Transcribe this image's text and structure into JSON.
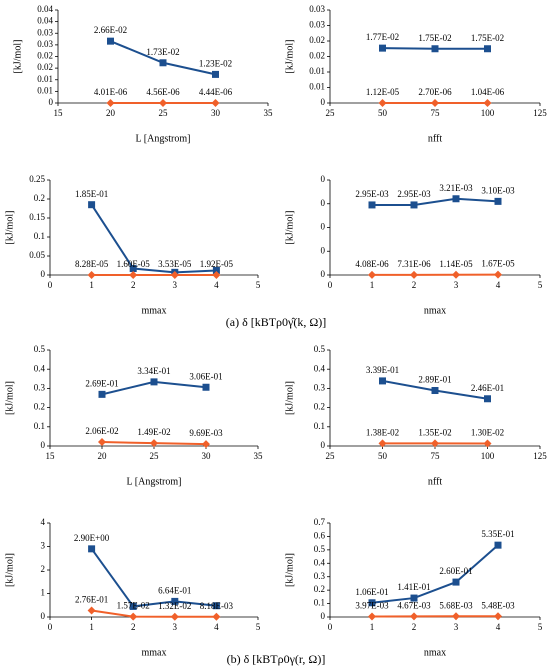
{
  "chart_data": [
    {
      "type": "line",
      "xlabel": "L [Angstrom]",
      "ylabel": "[kJ/mol]",
      "x": [
        20,
        25,
        30
      ],
      "xlim": [
        15,
        35
      ],
      "xticks": [
        15,
        20,
        25,
        30,
        35
      ],
      "ylim": [
        0,
        0.04
      ],
      "yticks": [
        0,
        {
          "value": 0.005,
          "label": "0.01"
        },
        0.01,
        {
          "value": 0.015,
          "label": "0.02"
        },
        0.02,
        {
          "value": 0.025,
          "label": "0.03"
        },
        0.03,
        {
          "value": 0.035,
          "label": "0.04"
        },
        0.04
      ],
      "series": [
        {
          "color": "#1c4f8f",
          "marker": "square",
          "values": [
            0.0266,
            0.0173,
            0.0123
          ],
          "value_labels": [
            "2.66E-02",
            "1.73E-02",
            "1.23E-02"
          ]
        },
        {
          "color": "#f0602a",
          "marker": "diamond",
          "values": [
            4.01e-06,
            4.56e-06,
            4.44e-06
          ],
          "value_labels": [
            "4.01E-06",
            "4.56E-06",
            "4.44E-06"
          ]
        }
      ]
    },
    {
      "type": "line",
      "xlabel": "nfft",
      "ylabel": "[kJ/mol]",
      "x": [
        50,
        75,
        100
      ],
      "xlim": [
        25,
        125
      ],
      "xticks": [
        25,
        50,
        75,
        100,
        125
      ],
      "ylim": [
        0,
        0.03
      ],
      "yticks": [
        0,
        {
          "value": 0.005,
          "label": "0.01"
        },
        0.01,
        {
          "value": 0.015,
          "label": "0.02"
        },
        0.02,
        {
          "value": 0.025,
          "label": "0.03"
        },
        0.03
      ],
      "series": [
        {
          "color": "#1c4f8f",
          "marker": "square",
          "values": [
            0.0177,
            0.0175,
            0.0175
          ],
          "value_labels": [
            "1.77E-02",
            "1.75E-02",
            "1.75E-02"
          ]
        },
        {
          "color": "#f0602a",
          "marker": "diamond",
          "values": [
            1.12e-05,
            2.7e-06,
            1.04e-06
          ],
          "value_labels": [
            "1.12E-05",
            "2.70E-06",
            "1.04E-06"
          ]
        }
      ]
    },
    {
      "type": "line",
      "xlabel": "mmax",
      "ylabel": "[kJ/mol]",
      "x": [
        1,
        2,
        3,
        4
      ],
      "xlim": [
        0,
        5
      ],
      "xticks": [
        0,
        1,
        2,
        3,
        4,
        5
      ],
      "ylim": [
        0,
        0.25
      ],
      "yticks": [
        0,
        0.05,
        0.1,
        0.15,
        0.2,
        0.25
      ],
      "series": [
        {
          "color": "#1c4f8f",
          "marker": "square",
          "values": [
            0.185,
            0.017,
            0.007,
            0.012
          ],
          "value_labels": [
            "1.85E-01",
            null,
            null,
            null
          ]
        },
        {
          "color": "#f0602a",
          "marker": "diamond",
          "values": [
            8.28e-05,
            1.6e-05,
            3.53e-05,
            1.92e-05
          ],
          "value_labels": [
            "8.28E-05",
            "1.60E-05",
            "3.53E-05",
            "1.92E-05"
          ]
        }
      ]
    },
    {
      "type": "line",
      "xlabel": "nmax",
      "ylabel": "[kJ/mol]",
      "x": [
        1,
        2,
        3,
        4
      ],
      "xlim": [
        0,
        5
      ],
      "xticks": [
        0,
        1,
        2,
        3,
        4,
        5
      ],
      "ylim": [
        0,
        0.004
      ],
      "yticks": [
        0,
        {
          "value": 0.001,
          "label": "0"
        },
        {
          "value": 0.002,
          "label": "0"
        },
        {
          "value": 0.003,
          "label": "0"
        },
        {
          "value": 0.004,
          "label": "0"
        }
      ],
      "series": [
        {
          "color": "#1c4f8f",
          "marker": "square",
          "values": [
            0.00295,
            0.00295,
            0.00321,
            0.0031
          ],
          "value_labels": [
            "2.95E-03",
            "2.95E-03",
            "3.21E-03",
            "3.10E-03"
          ]
        },
        {
          "color": "#f0602a",
          "marker": "diamond",
          "values": [
            4.08e-06,
            7.31e-06,
            1.14e-05,
            1.67e-05
          ],
          "value_labels": [
            "4.08E-06",
            "7.31E-06",
            "1.14E-05",
            "1.67E-05"
          ]
        }
      ]
    },
    {
      "type": "line",
      "xlabel": "L [Angstrom]",
      "ylabel": "[kJ/mol]",
      "x": [
        20,
        25,
        30
      ],
      "xlim": [
        15,
        35
      ],
      "xticks": [
        15,
        20,
        25,
        30,
        35
      ],
      "ylim": [
        0,
        0.5
      ],
      "yticks": [
        0,
        0.1,
        0.2,
        0.3,
        0.4,
        0.5
      ],
      "series": [
        {
          "color": "#1c4f8f",
          "marker": "square",
          "values": [
            0.269,
            0.334,
            0.306
          ],
          "value_labels": [
            "2.69E-01",
            "3.34E-01",
            "3.06E-01"
          ]
        },
        {
          "color": "#f0602a",
          "marker": "diamond",
          "values": [
            0.0206,
            0.0149,
            0.00969
          ],
          "value_labels": [
            "2.06E-02",
            "1.49E-02",
            "9.69E-03"
          ]
        }
      ]
    },
    {
      "type": "line",
      "xlabel": "nfft",
      "ylabel": "[kJ/mol]",
      "x": [
        50,
        75,
        100
      ],
      "xlim": [
        25,
        125
      ],
      "xticks": [
        25,
        50,
        75,
        100,
        125
      ],
      "ylim": [
        0,
        0.5
      ],
      "yticks": [
        0,
        0.1,
        0.2,
        0.3,
        0.4,
        0.5
      ],
      "series": [
        {
          "color": "#1c4f8f",
          "marker": "square",
          "values": [
            0.339,
            0.289,
            0.246
          ],
          "value_labels": [
            "3.39E-01",
            "2.89E-01",
            "2.46E-01"
          ]
        },
        {
          "color": "#f0602a",
          "marker": "diamond",
          "values": [
            0.0138,
            0.0135,
            0.013
          ],
          "value_labels": [
            "1.38E-02",
            "1.35E-02",
            "1.30E-02"
          ]
        }
      ]
    },
    {
      "type": "line",
      "xlabel": "mmax",
      "ylabel": "[kJ/mol]",
      "x": [
        1,
        2,
        3,
        4
      ],
      "xlim": [
        0,
        5
      ],
      "xticks": [
        0,
        1,
        2,
        3,
        4,
        5
      ],
      "ylim": [
        0,
        4
      ],
      "yticks": [
        0,
        1,
        2,
        3,
        4
      ],
      "series": [
        {
          "color": "#1c4f8f",
          "marker": "square",
          "values": [
            2.9,
            0.45,
            0.664,
            0.48
          ],
          "value_labels": [
            "2.90E+00",
            null,
            "6.64E-01",
            null
          ]
        },
        {
          "color": "#f0602a",
          "marker": "diamond",
          "values": [
            0.276,
            0.0157,
            0.0132,
            0.00818
          ],
          "value_labels": [
            "2.76E-01",
            "1.57E-02",
            "1.32E-02",
            "8.18E-03"
          ]
        }
      ]
    },
    {
      "type": "line",
      "xlabel": "nmax",
      "ylabel": "[kJ/mol]",
      "x": [
        1,
        2,
        3,
        4
      ],
      "xlim": [
        0,
        5
      ],
      "xticks": [
        0,
        1,
        2,
        3,
        4,
        5
      ],
      "ylim": [
        0,
        0.7
      ],
      "yticks": [
        0,
        0.1,
        0.2,
        0.3,
        0.4,
        0.5,
        0.6,
        0.7
      ],
      "series": [
        {
          "color": "#1c4f8f",
          "marker": "square",
          "values": [
            0.106,
            0.141,
            0.26,
            0.535
          ],
          "value_labels": [
            "1.06E-01",
            "1.41E-01",
            "2.60E-01",
            "5.35E-01"
          ]
        },
        {
          "color": "#f0602a",
          "marker": "diamond",
          "values": [
            0.00397,
            0.00467,
            0.00568,
            0.00548
          ],
          "value_labels": [
            "3.97E-03",
            "4.67E-03",
            "5.68E-03",
            "5.48E-03"
          ]
        }
      ]
    }
  ],
  "captions": [
    "(a) δ [kBTρ0γ̂(k, Ω)]",
    "(b) δ [kBTρ0γ(r, Ω)]"
  ]
}
